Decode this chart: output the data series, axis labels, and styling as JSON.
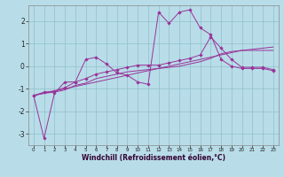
{
  "xlabel": "Windchill (Refroidissement éolien,°C)",
  "bg_color": "#b8dde8",
  "grid_color": "#8fbfcc",
  "line_color": "#993399",
  "xlim": [
    -0.5,
    23.5
  ],
  "ylim": [
    -3.5,
    2.7
  ],
  "xticks": [
    0,
    1,
    2,
    3,
    4,
    5,
    6,
    7,
    8,
    9,
    10,
    11,
    12,
    13,
    14,
    15,
    16,
    17,
    18,
    19,
    20,
    21,
    22,
    23
  ],
  "yticks": [
    -3,
    -2,
    -1,
    0,
    1,
    2
  ],
  "lines": [
    {
      "x": [
        0,
        1,
        2,
        3,
        4,
        5,
        6,
        7,
        8,
        9,
        10,
        11,
        12,
        13,
        14,
        15,
        16,
        17,
        18,
        19,
        20,
        21,
        22,
        23
      ],
      "y": [
        -1.3,
        -3.2,
        -1.2,
        -0.7,
        -0.7,
        0.3,
        0.4,
        0.1,
        -0.3,
        -0.4,
        -0.7,
        -0.8,
        2.4,
        1.9,
        2.4,
        2.5,
        1.7,
        1.4,
        0.3,
        0.0,
        -0.1,
        -0.1,
        -0.1,
        -0.2
      ],
      "marker": true
    },
    {
      "x": [
        0,
        1,
        2,
        3,
        4,
        5,
        6,
        7,
        8,
        9,
        10,
        11,
        12,
        13,
        14,
        15,
        16,
        17,
        18,
        19,
        20,
        21,
        22,
        23
      ],
      "y": [
        -1.3,
        -1.15,
        -1.1,
        -0.95,
        -0.7,
        -0.55,
        -0.35,
        -0.25,
        -0.15,
        -0.05,
        0.05,
        0.05,
        0.05,
        0.15,
        0.25,
        0.35,
        0.5,
        1.3,
        0.8,
        0.3,
        -0.05,
        -0.05,
        -0.05,
        -0.15
      ],
      "marker": true
    },
    {
      "x": [
        0,
        1,
        2,
        3,
        4,
        5,
        6,
        7,
        8,
        9,
        10,
        11,
        12,
        13,
        14,
        15,
        16,
        17,
        18,
        19,
        20,
        21,
        22,
        23
      ],
      "y": [
        -1.3,
        -1.2,
        -1.15,
        -1.05,
        -0.85,
        -0.75,
        -0.55,
        -0.45,
        -0.35,
        -0.25,
        -0.2,
        -0.15,
        -0.1,
        -0.05,
        0.0,
        0.1,
        0.2,
        0.35,
        0.55,
        0.65,
        0.7,
        0.7,
        0.7,
        0.7
      ],
      "marker": false
    },
    {
      "x": [
        0,
        1,
        2,
        3,
        4,
        5,
        6,
        7,
        8,
        9,
        10,
        11,
        12,
        13,
        14,
        15,
        16,
        17,
        18,
        19,
        20,
        21,
        22,
        23
      ],
      "y": [
        -1.3,
        -1.2,
        -1.1,
        -1.0,
        -0.9,
        -0.8,
        -0.7,
        -0.6,
        -0.5,
        -0.4,
        -0.3,
        -0.2,
        -0.1,
        0.0,
        0.1,
        0.2,
        0.3,
        0.4,
        0.5,
        0.6,
        0.7,
        0.75,
        0.8,
        0.85
      ],
      "marker": false
    }
  ]
}
